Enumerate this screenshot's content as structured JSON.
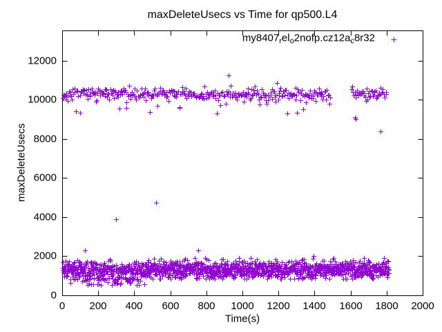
{
  "chart_data": {
    "type": "scatter",
    "title": "maxDeleteUsecs vs Time for qp500.L4",
    "xlabel": "Time(s)",
    "ylabel": "maxDeleteUsecs",
    "xlim": [
      0,
      2000
    ],
    "ylim": [
      0,
      13557
    ],
    "xticks": [
      0,
      200,
      400,
      600,
      800,
      1000,
      1200,
      1400,
      1600,
      1800,
      2000
    ],
    "yticks": [
      0,
      2000,
      4000,
      6000,
      8000,
      10000,
      12000
    ],
    "grid": false,
    "legend_position": "top-right-inside",
    "frame_color": "#000000",
    "marker": {
      "shape": "plus",
      "color": "#9400d3",
      "size": 7
    },
    "series": [
      {
        "name": "my8407_rel_o2nofp.cz12a_c8r32",
        "label_segments": [
          {
            "text": "my8407",
            "sub": false
          },
          {
            "text": "r",
            "sub": true
          },
          {
            "text": "el",
            "sub": false
          },
          {
            "text": "o",
            "sub": true
          },
          {
            "text": "2nofp.cz12a",
            "sub": false
          },
          {
            "text": "c",
            "sub": true
          },
          {
            "text": "8r32",
            "sub": false
          }
        ],
        "color": "#9400d3",
        "clusters": [
          {
            "band": "upper",
            "x_start": 2,
            "x_end": 1800,
            "points": 430,
            "y_mean": 10300,
            "y_std": 170,
            "y_min": 9880,
            "y_max": 10860,
            "gap_x": [
              1487,
              1602
            ],
            "stray_low": {
              "prob": 0.045,
              "y_min": 9280,
              "y_max": 9860
            }
          },
          {
            "band": "lower",
            "x_start": 2,
            "x_end": 1813,
            "points": 1500,
            "y_mean": 1320,
            "y_std": 230,
            "y_min": 860,
            "y_max": 1900,
            "gap_x": null,
            "stray_low": {
              "prob": 0.2,
              "y_min": 520,
              "y_max": 900,
              "x_start": 40,
              "x_end": 460
            }
          }
        ],
        "outliers": [
          [
            128,
            2290
          ],
          [
            298,
            3880
          ],
          [
            520,
            4730
          ],
          [
            753,
            2310
          ],
          [
            925,
            11250
          ],
          [
            1396,
            2030
          ],
          [
            1625,
            9110
          ],
          [
            1629,
            9010
          ],
          [
            1766,
            8400
          ]
        ]
      }
    ]
  }
}
